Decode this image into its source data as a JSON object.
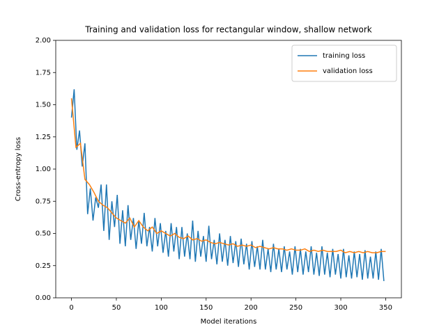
{
  "chart_data": {
    "type": "line",
    "title": "Training and validation loss for rectangular window, shallow network",
    "x_label": "Model iterations",
    "y_label": "Cross-entropy loss",
    "xlim": [
      -17.5,
      367.5
    ],
    "xticks": [
      0,
      50,
      100,
      150,
      200,
      250,
      300,
      350
    ],
    "ylim": [
      0,
      2
    ],
    "yticks": [
      {
        "value": 0,
        "label": "0.00"
      },
      {
        "value": 0.25,
        "label": "0.25"
      },
      {
        "value": 0.5,
        "label": "0.50"
      },
      {
        "value": 0.75,
        "label": "0.75"
      },
      {
        "value": 1,
        "label": "1.00"
      },
      {
        "value": 1.25,
        "label": "1.25"
      },
      {
        "value": 1.5,
        "label": "1.50"
      },
      {
        "value": 1.75,
        "label": "1.75"
      },
      {
        "value": 2,
        "label": "2.00"
      }
    ],
    "legend": "upper right",
    "series": [
      {
        "name": "training loss",
        "color": "#1f77b4",
        "x": [
          0,
          3,
          6,
          9,
          12,
          15,
          18,
          21,
          24,
          27,
          30,
          33,
          36,
          39,
          42,
          45,
          48,
          51,
          54,
          57,
          60,
          63,
          66,
          69,
          72,
          75,
          78,
          81,
          84,
          87,
          90,
          93,
          96,
          99,
          102,
          105,
          108,
          111,
          114,
          117,
          120,
          123,
          126,
          129,
          132,
          135,
          138,
          141,
          144,
          147,
          150,
          153,
          156,
          159,
          162,
          165,
          168,
          171,
          174,
          177,
          180,
          183,
          186,
          189,
          192,
          195,
          198,
          201,
          204,
          207,
          210,
          213,
          216,
          219,
          222,
          225,
          228,
          231,
          234,
          237,
          240,
          243,
          246,
          249,
          252,
          255,
          258,
          261,
          264,
          267,
          270,
          273,
          276,
          279,
          282,
          285,
          288,
          291,
          294,
          297,
          300,
          303,
          306,
          309,
          312,
          315,
          318,
          321,
          324,
          327,
          330,
          333,
          336,
          339,
          342,
          345,
          348
        ],
        "values": [
          1.4,
          1.62,
          1.15,
          1.3,
          1.02,
          1.2,
          0.65,
          0.85,
          0.6,
          0.78,
          0.7,
          0.88,
          0.52,
          0.88,
          0.45,
          0.75,
          0.55,
          0.8,
          0.42,
          0.68,
          0.4,
          0.72,
          0.45,
          0.62,
          0.38,
          0.6,
          0.42,
          0.66,
          0.4,
          0.55,
          0.36,
          0.62,
          0.4,
          0.58,
          0.35,
          0.52,
          0.32,
          0.58,
          0.36,
          0.55,
          0.3,
          0.55,
          0.32,
          0.5,
          0.3,
          0.6,
          0.28,
          0.52,
          0.32,
          0.48,
          0.28,
          0.56,
          0.3,
          0.45,
          0.26,
          0.5,
          0.28,
          0.45,
          0.25,
          0.48,
          0.27,
          0.44,
          0.24,
          0.46,
          0.26,
          0.42,
          0.22,
          0.44,
          0.24,
          0.4,
          0.22,
          0.45,
          0.22,
          0.38,
          0.2,
          0.42,
          0.22,
          0.38,
          0.2,
          0.4,
          0.22,
          0.36,
          0.18,
          0.4,
          0.2,
          0.38,
          0.18,
          0.36,
          0.2,
          0.4,
          0.18,
          0.35,
          0.17,
          0.4,
          0.18,
          0.35,
          0.16,
          0.38,
          0.18,
          0.34,
          0.15,
          0.38,
          0.16,
          0.33,
          0.15,
          0.36,
          0.16,
          0.34,
          0.14,
          0.37,
          0.15,
          0.32,
          0.15,
          0.36,
          0.14,
          0.38,
          0.13
        ]
      },
      {
        "name": "validation loss",
        "color": "#ff7f0e",
        "x": [
          0,
          5,
          10,
          15,
          20,
          25,
          30,
          35,
          40,
          45,
          50,
          55,
          60,
          65,
          70,
          75,
          80,
          85,
          90,
          95,
          100,
          105,
          110,
          115,
          120,
          125,
          130,
          135,
          140,
          145,
          150,
          155,
          160,
          165,
          170,
          175,
          180,
          185,
          190,
          195,
          200,
          205,
          210,
          215,
          220,
          225,
          230,
          235,
          240,
          245,
          250,
          255,
          260,
          265,
          270,
          275,
          280,
          285,
          290,
          295,
          300,
          305,
          310,
          315,
          320,
          325,
          330,
          335,
          340,
          345,
          350
        ],
        "values": [
          1.55,
          1.17,
          1.2,
          0.92,
          0.88,
          0.82,
          0.75,
          0.72,
          0.7,
          0.66,
          0.62,
          0.6,
          0.58,
          0.62,
          0.55,
          0.6,
          0.55,
          0.52,
          0.55,
          0.5,
          0.52,
          0.5,
          0.48,
          0.5,
          0.47,
          0.46,
          0.48,
          0.45,
          0.46,
          0.44,
          0.45,
          0.43,
          0.42,
          0.43,
          0.42,
          0.41,
          0.42,
          0.4,
          0.41,
          0.4,
          0.41,
          0.39,
          0.4,
          0.39,
          0.38,
          0.39,
          0.38,
          0.38,
          0.37,
          0.38,
          0.37,
          0.37,
          0.38,
          0.36,
          0.37,
          0.36,
          0.37,
          0.36,
          0.36,
          0.36,
          0.37,
          0.35,
          0.36,
          0.35,
          0.36,
          0.35,
          0.36,
          0.35,
          0.35,
          0.36,
          0.36
        ]
      }
    ]
  }
}
